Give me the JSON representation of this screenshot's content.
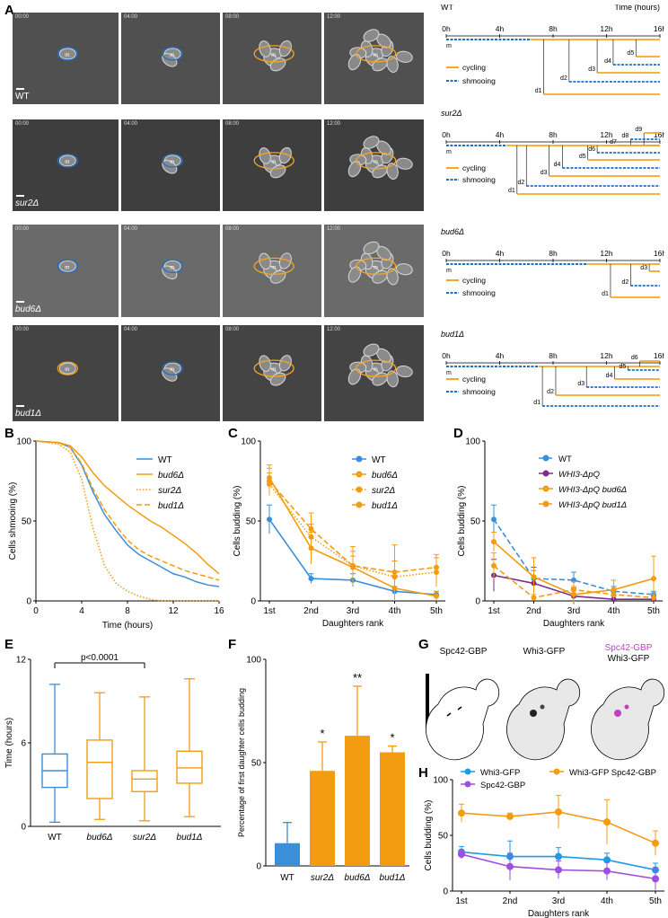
{
  "figure": {
    "letters": [
      "A",
      "B",
      "C",
      "D",
      "E",
      "F",
      "G",
      "H"
    ]
  },
  "panel_a": {
    "timestamps": [
      "00:00",
      "04:00",
      "08:00",
      "12:00"
    ],
    "genotypes": [
      "WT",
      "sur2Δ",
      "bud6Δ",
      "bud1Δ"
    ],
    "lineage_legend": {
      "cycling": "cycling",
      "shmooing": "shmooing"
    },
    "time_axis_label": "Time (hours)",
    "time_ticks": [
      "0h",
      "4h",
      "8h",
      "12h",
      "16h"
    ],
    "mother_label": "m",
    "lineages": [
      {
        "title": "WT",
        "daughters": [
          "d5",
          "d4",
          "d3",
          "d2",
          "d1"
        ]
      },
      {
        "title": "sur2Δ",
        "daughters": [
          "d9",
          "d8",
          "d7",
          "d6",
          "d5",
          "d4",
          "d3",
          "d2",
          "d1"
        ]
      },
      {
        "title": "bud6Δ",
        "daughters": [
          "d3",
          "d2",
          "d1"
        ]
      },
      {
        "title": "bud1Δ",
        "daughters": [
          "d6",
          "d5",
          "d4",
          "d3",
          "d2",
          "d1"
        ]
      }
    ],
    "colors": {
      "cycling": "#f5a623",
      "shmooing": "#1f6fc5",
      "wt": "#3b8fd8",
      "orange": "#f39c12",
      "purple": "#7b2d8e",
      "violet": "#a04ee0"
    }
  },
  "chart_data": [
    {
      "panel": "B",
      "type": "line",
      "xlabel": "Time (hours)",
      "ylabel": "Cells shmooing (%)",
      "xlim": [
        0,
        16
      ],
      "ylim": [
        0,
        100
      ],
      "xticks": [
        "0",
        "4",
        "8",
        "12",
        "16"
      ],
      "yticks": [
        "0",
        "50",
        "100"
      ],
      "legend": [
        "WT",
        "bud6Δ",
        "sur2Δ",
        "bud1Δ"
      ],
      "series": [
        {
          "name": "WT",
          "x": [
            0,
            2,
            3,
            4,
            5,
            6,
            7,
            8,
            9,
            10,
            11,
            12,
            13,
            14,
            15,
            16
          ],
          "values": [
            100,
            99,
            96,
            85,
            68,
            54,
            44,
            35,
            29,
            25,
            21,
            17,
            15,
            12,
            10,
            9
          ]
        },
        {
          "name": "bud6Δ",
          "x": [
            0,
            2,
            3,
            4,
            5,
            6,
            7,
            8,
            9,
            10,
            11,
            12,
            13,
            14,
            15,
            16
          ],
          "values": [
            100,
            99,
            97,
            90,
            80,
            72,
            66,
            60,
            55,
            50,
            46,
            41,
            36,
            30,
            23,
            17
          ]
        },
        {
          "name": "sur2Δ",
          "x": [
            0,
            2,
            3,
            4,
            5,
            6,
            7,
            8,
            9,
            10,
            11,
            12,
            13,
            14,
            15,
            16
          ],
          "values": [
            100,
            98,
            93,
            76,
            45,
            22,
            11,
            6,
            3,
            1,
            0,
            0,
            0,
            0,
            0,
            0
          ]
        },
        {
          "name": "bud1Δ",
          "x": [
            0,
            2,
            3,
            4,
            5,
            6,
            7,
            8,
            9,
            10,
            11,
            12,
            13,
            14,
            15,
            16
          ],
          "values": [
            100,
            99,
            96,
            86,
            70,
            57,
            47,
            38,
            32,
            28,
            25,
            22,
            19,
            17,
            15,
            13
          ]
        }
      ]
    },
    {
      "panel": "C",
      "type": "line",
      "xlabel": "Daughters rank",
      "ylabel": "Cells budding (%)",
      "ylim": [
        0,
        100
      ],
      "categories": [
        "1st",
        "2nd",
        "3rd",
        "4th",
        "5th"
      ],
      "yticks": [
        "0",
        "50",
        "100"
      ],
      "legend": [
        "WT",
        "bud6Δ",
        "sur2Δ",
        "bud1Δ"
      ],
      "series": [
        {
          "name": "WT",
          "values": [
            51,
            14,
            13,
            6,
            4
          ],
          "err": [
            9,
            3,
            4,
            3,
            2
          ]
        },
        {
          "name": "bud6Δ",
          "values": [
            77,
            33,
            21,
            8,
            3
          ],
          "err": [
            8,
            10,
            7,
            8,
            3
          ]
        },
        {
          "name": "sur2Δ",
          "values": [
            73,
            40,
            22,
            15,
            18
          ],
          "err": [
            7,
            8,
            9,
            10,
            9
          ]
        },
        {
          "name": "bud1Δ",
          "values": [
            75,
            45,
            22,
            18,
            21
          ],
          "err": [
            8,
            10,
            12,
            17,
            8
          ]
        }
      ]
    },
    {
      "panel": "D",
      "type": "line",
      "xlabel": "Daughters rank",
      "ylabel": "Cells budding (%)",
      "ylim": [
        0,
        100
      ],
      "categories": [
        "1st",
        "2nd",
        "3rd",
        "4th",
        "5th"
      ],
      "yticks": [
        "0",
        "50",
        "100"
      ],
      "legend": [
        "WT",
        "WHI3-ΔpQ",
        "WHI3-ΔpQ bud6Δ",
        "WHI3-ΔpQ bud1Δ"
      ],
      "series": [
        {
          "name": "WT",
          "values": [
            51,
            14,
            13,
            6,
            4
          ],
          "err": [
            9,
            5,
            5,
            3,
            2
          ]
        },
        {
          "name": "WHI3-ΔpQ",
          "values": [
            16,
            11,
            3,
            1,
            1
          ],
          "err": [
            10,
            10,
            5,
            2,
            2
          ]
        },
        {
          "name": "WHI3-ΔpQ bud6Δ",
          "values": [
            37,
            15,
            4,
            7,
            14
          ],
          "err": [
            6,
            12,
            5,
            6,
            14
          ]
        },
        {
          "name": "WHI3-ΔpQ bud1Δ",
          "values": [
            22,
            2,
            7,
            4,
            2
          ],
          "err": [
            8,
            2,
            5,
            3,
            2
          ]
        }
      ]
    },
    {
      "panel": "E",
      "type": "box",
      "ylabel": "Time (hours)",
      "ylim": [
        0,
        12
      ],
      "yticks": [
        "0",
        "6",
        "12"
      ],
      "categories": [
        "WT",
        "bud6Δ",
        "sur2Δ",
        "bud1Δ"
      ],
      "annotation": "p<0.0001",
      "boxes": [
        {
          "min": 0.3,
          "q1": 2.8,
          "median": 4.0,
          "q3": 5.2,
          "max": 10.2
        },
        {
          "min": 0.5,
          "q1": 2.0,
          "median": 4.6,
          "q3": 6.2,
          "max": 9.6
        },
        {
          "min": 0.4,
          "q1": 2.5,
          "median": 3.4,
          "q3": 4.0,
          "max": 9.3
        },
        {
          "min": 0.7,
          "q1": 3.1,
          "median": 4.2,
          "q3": 5.4,
          "max": 10.6
        }
      ]
    },
    {
      "panel": "F",
      "type": "bar",
      "ylabel": "Percentage of first daughter cells budding",
      "ylim": [
        0,
        100
      ],
      "yticks": [
        "0",
        "50",
        "100"
      ],
      "categories": [
        "WT",
        "sur2Δ",
        "bud6Δ",
        "bud1Δ"
      ],
      "values": [
        11,
        46,
        63,
        55
      ],
      "err": [
        10,
        14,
        24,
        3
      ],
      "significance": [
        "",
        "*",
        "**",
        "*"
      ]
    },
    {
      "panel": "H",
      "type": "line",
      "xlabel": "Daughters rank",
      "ylabel": "Cells budding (%)",
      "ylim": [
        0,
        100
      ],
      "categories": [
        "1st",
        "2nd",
        "3rd",
        "4th",
        "5th"
      ],
      "yticks": [
        "0",
        "50",
        "100"
      ],
      "legend": [
        "Whi3-GFP",
        "Spc42-GBP",
        "Whi3-GFP Spc42-GBP"
      ],
      "series": [
        {
          "name": "Whi3-GFP",
          "values": [
            35,
            31,
            31,
            28,
            19
          ],
          "err": [
            5,
            14,
            8,
            6,
            6
          ]
        },
        {
          "name": "Spc42-GBP",
          "values": [
            33,
            22,
            19,
            18,
            11
          ],
          "err": [
            4,
            12,
            8,
            8,
            10
          ]
        },
        {
          "name": "Whi3-GFP Spc42-GBP",
          "values": [
            70,
            67,
            71,
            62,
            43
          ],
          "err": [
            8,
            3,
            15,
            20,
            11
          ]
        }
      ]
    }
  ],
  "panel_g": {
    "labels": [
      "Spc42-GBP",
      "Whi3-GFP",
      "Spc42-GBP",
      "Whi3-GFP"
    ]
  }
}
